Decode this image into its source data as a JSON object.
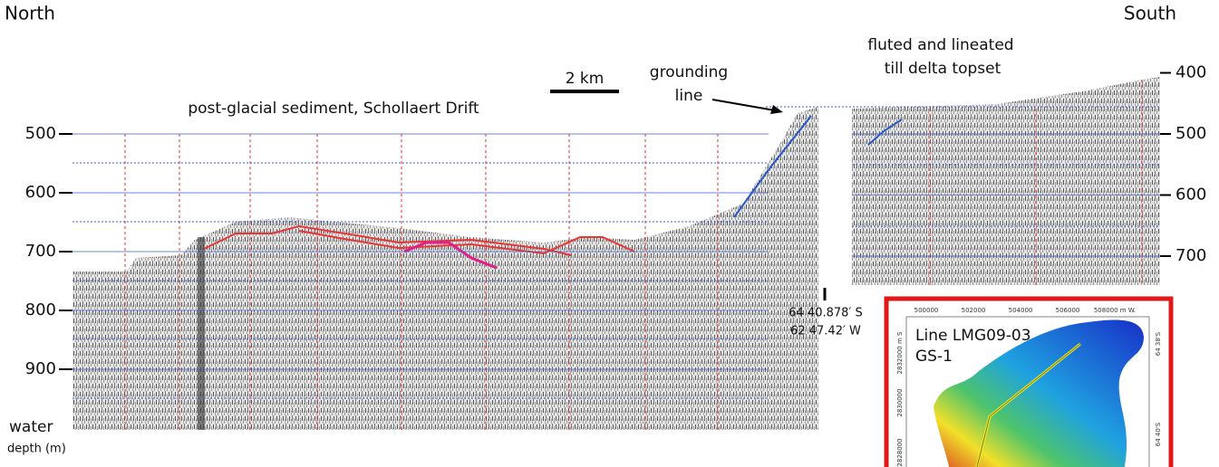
{
  "header": {
    "left": "North",
    "right": "South"
  },
  "annotations": {
    "sediment": "post-glacial sediment, Schollaert Drift",
    "scale": "2 km",
    "grounding_line": [
      "grounding",
      "line"
    ],
    "topset": [
      "fluted and lineated",
      "till delta topset"
    ]
  },
  "left_axis": {
    "ticks": [
      500,
      600,
      700,
      800,
      900
    ],
    "label": [
      "water",
      "depth (m)"
    ]
  },
  "right_axis": {
    "ticks": [
      400,
      500,
      600,
      700
    ]
  },
  "location": {
    "lat": "64 40.878′ S",
    "lon": "62 47.42′  W"
  },
  "inset": {
    "title": "Line LMG09-03",
    "subtitle": "GS-1",
    "x_labels": [
      "500000",
      "502000",
      "504000",
      "506000",
      "508000 m W."
    ],
    "y_labels": [
      "2832000 m S",
      "2830000",
      "2828000"
    ],
    "lat_labels": [
      "64 38'S",
      "64 40'S"
    ]
  }
}
